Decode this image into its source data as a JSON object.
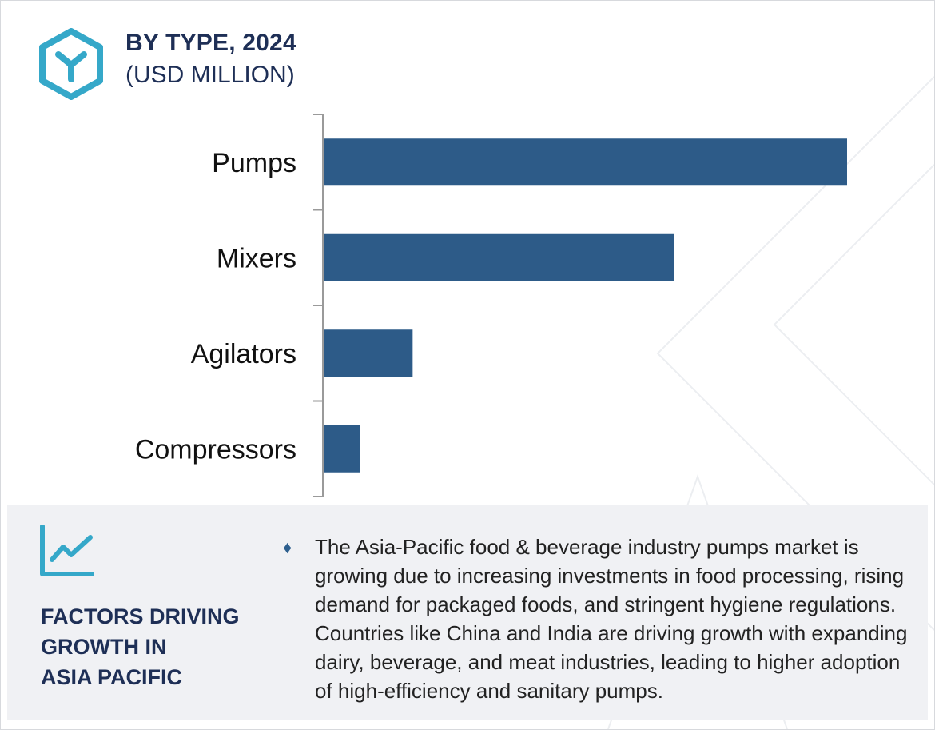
{
  "header": {
    "title": "BY TYPE, 2024",
    "subtitle": "(USD MILLION)",
    "logo_icon": "hexagon-y-icon",
    "accent_color": "#35a8c9"
  },
  "chart_data": {
    "type": "bar",
    "orientation": "horizontal",
    "categories": [
      "Pumps",
      "Mixers",
      "Agilators",
      "Compressors"
    ],
    "values": [
      100,
      67,
      17,
      7
    ],
    "title": "BY TYPE, 2024",
    "subtitle": "(USD MILLION)",
    "xlabel": "",
    "ylabel": "",
    "xlim": [
      0,
      100
    ],
    "grid": false,
    "bar_color": "#2d5b88"
  },
  "footer": {
    "icon": "trend-line-chart-icon",
    "heading_lines": [
      "FACTORS DRIVING",
      "GROWTH IN",
      "ASIA PACIFIC"
    ],
    "bullet_glyph": "♦",
    "text": "The Asia-Pacific food & beverage industry pumps market is growing due to increasing investments in food processing, rising demand for packaged foods, and stringent hygiene regulations. Countries like China and India are driving growth with expanding dairy, beverage, and meat industries, leading to higher adoption of high-efficiency and sanitary pumps."
  }
}
